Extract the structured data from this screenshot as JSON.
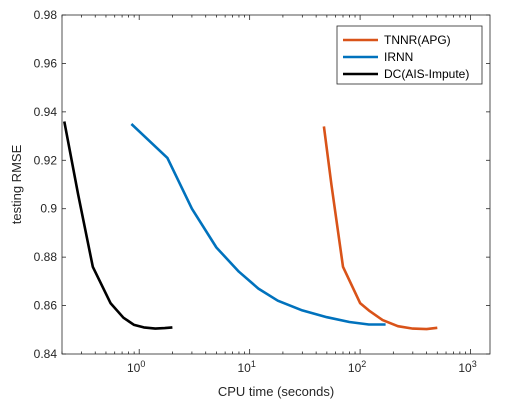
{
  "chart_data": {
    "type": "line",
    "xlabel": "CPU time (seconds)",
    "ylabel": "testing RMSE",
    "xscale": "log",
    "xlim": [
      0.2,
      1500
    ],
    "ylim": [
      0.84,
      0.98
    ],
    "yticks": [
      "0.84",
      "0.86",
      "0.88",
      "0.9",
      "0.92",
      "0.94",
      "0.96",
      "0.98"
    ],
    "xticks": [
      {
        "base": "10",
        "exp": "0"
      },
      {
        "base": "10",
        "exp": "1"
      },
      {
        "base": "10",
        "exp": "2"
      },
      {
        "base": "10",
        "exp": "3"
      }
    ],
    "legend_position": "top-right",
    "series": [
      {
        "name": "TNNR(APG)",
        "color": "#D95319",
        "x": [
          47,
          55,
          70,
          100,
          120,
          160,
          220,
          300,
          400,
          500
        ],
        "y": [
          0.934,
          0.91,
          0.876,
          0.861,
          0.858,
          0.854,
          0.8515,
          0.8505,
          0.8503,
          0.8508
        ]
      },
      {
        "name": "IRNN",
        "color": "#0072BD",
        "x": [
          0.85,
          1.8,
          3,
          5,
          8,
          12,
          18,
          30,
          50,
          80,
          120,
          170
        ],
        "y": [
          0.935,
          0.921,
          0.9,
          0.884,
          0.874,
          0.867,
          0.862,
          0.858,
          0.8552,
          0.8532,
          0.8522,
          0.8522
        ]
      },
      {
        "name": "DC(AIS-Impute)",
        "color": "#000000",
        "x": [
          0.21,
          0.28,
          0.38,
          0.55,
          0.72,
          0.9,
          1.1,
          1.4,
          1.7,
          2.0
        ],
        "y": [
          0.936,
          0.906,
          0.876,
          0.861,
          0.855,
          0.852,
          0.851,
          0.8505,
          0.8507,
          0.851
        ]
      }
    ]
  }
}
